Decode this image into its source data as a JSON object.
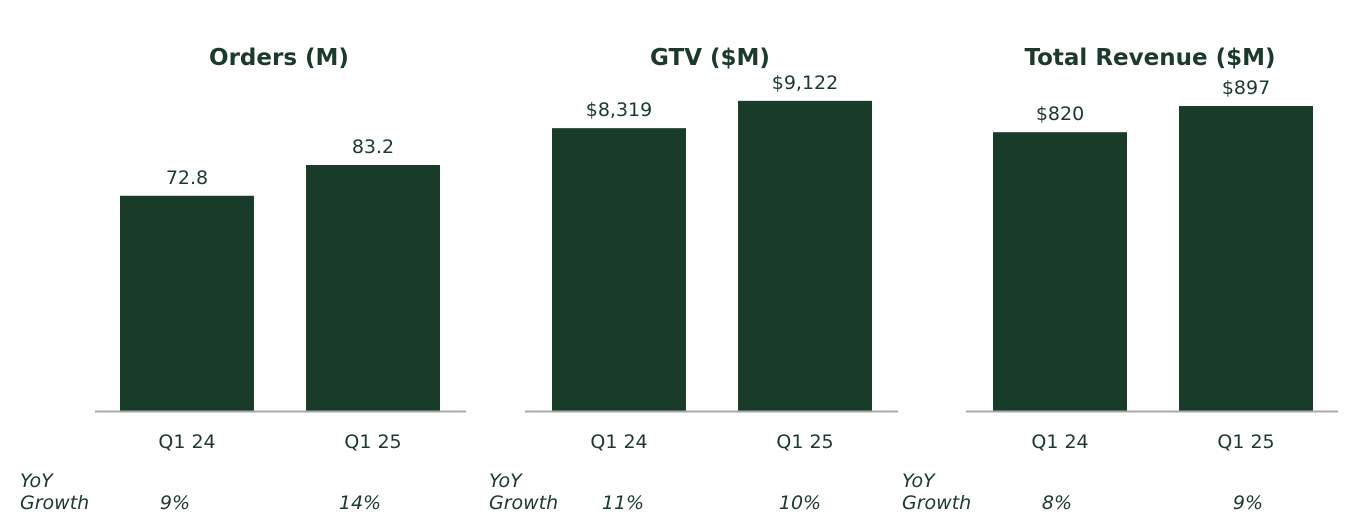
{
  "colors": {
    "bar": "#183c29",
    "text": "#1c3a2c",
    "axis": "#a8a8a8",
    "background": "#ffffff"
  },
  "chart_data": [
    {
      "type": "bar",
      "title": "Orders (M)",
      "categories": [
        "Q1 24",
        "Q1 25"
      ],
      "values": [
        72.8,
        83.2
      ],
      "value_labels": [
        "72.8",
        "83.2"
      ],
      "growth_label": "YoY Growth",
      "growth_values": [
        "9%",
        "14%"
      ],
      "ylim": [
        0,
        115
      ]
    },
    {
      "type": "bar",
      "title": "GTV ($M)",
      "categories": [
        "Q1 24",
        "Q1 25"
      ],
      "values": [
        8319,
        9122
      ],
      "value_labels": [
        "$8,319",
        "$9,122"
      ],
      "growth_label": "YoY Growth",
      "growth_values": [
        "11%",
        "10%"
      ],
      "ylim": [
        0,
        10000
      ]
    },
    {
      "type": "bar",
      "title": "Total Revenue ($M)",
      "categories": [
        "Q1 24",
        "Q1 25"
      ],
      "values": [
        820,
        897
      ],
      "value_labels": [
        "$820",
        "$897"
      ],
      "growth_label": "YoY Growth",
      "growth_values": [
        "8%",
        "9%"
      ],
      "ylim": [
        0,
        1000
      ]
    }
  ]
}
